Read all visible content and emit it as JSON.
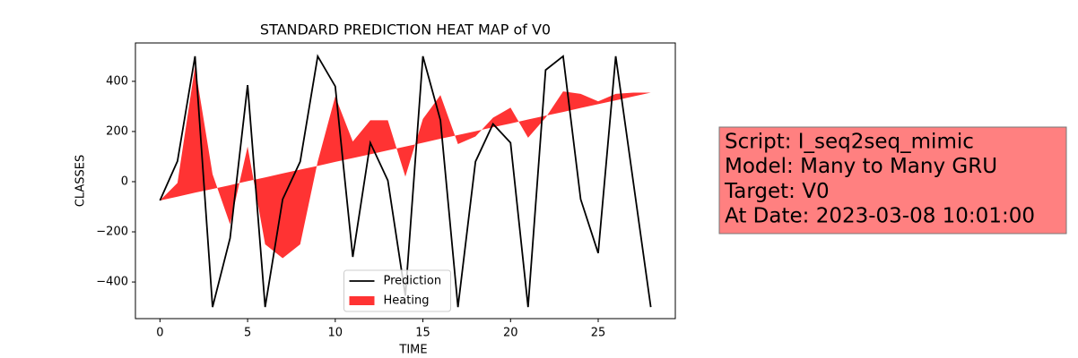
{
  "chart_data": {
    "type": "line-area",
    "title": "STANDARD PREDICTION HEAT MAP of V0",
    "xlabel": "TIME",
    "ylabel": "CLASSES",
    "x": [
      0,
      1,
      2,
      3,
      4,
      5,
      6,
      7,
      8,
      9,
      10,
      11,
      12,
      13,
      14,
      15,
      16,
      17,
      18,
      19,
      20,
      21,
      22,
      23,
      24,
      25,
      26,
      27,
      28
    ],
    "series": [
      {
        "name": "Prediction",
        "color": "#000000",
        "kind": "line",
        "values": [
          -75,
          82,
          500,
          -500,
          -225,
          385,
          -500,
          -70,
          80,
          500,
          380,
          -300,
          155,
          5,
          -455,
          500,
          245,
          -500,
          80,
          230,
          155,
          -500,
          445,
          500,
          -70,
          -285,
          500,
          0,
          -500
        ]
      },
      {
        "name": "Heating",
        "color": "#ff0000",
        "kind": "area",
        "values": [
          -75,
          -5,
          460,
          30,
          -170,
          140,
          -250,
          -305,
          -250,
          80,
          340,
          160,
          245,
          245,
          20,
          250,
          345,
          150,
          180,
          255,
          295,
          175,
          255,
          360,
          350,
          320,
          350,
          355,
          355
        ],
        "baseline": [
          -75,
          -60,
          -44,
          -29,
          -14,
          2,
          17,
          33,
          48,
          63,
          79,
          94,
          109,
          125,
          140,
          155,
          171,
          186,
          201,
          217,
          232,
          248,
          263,
          278,
          294,
          309,
          324,
          340,
          355
        ]
      }
    ],
    "xlim": [
      -1.4,
      29.4
    ],
    "ylim": [
      -546,
      553
    ],
    "xticks": [
      0,
      5,
      10,
      15,
      20,
      25
    ],
    "yticks": [
      {
        "value": -400,
        "label": "−400"
      },
      {
        "value": -200,
        "label": "−200"
      },
      0,
      200,
      400
    ],
    "legend": "lower center",
    "annotation": [
      "Script: I_seq2seq_mimic",
      "Model: Many to Many GRU",
      "Target: V0",
      "At Date: 2023-03-08 10:01:00"
    ]
  }
}
